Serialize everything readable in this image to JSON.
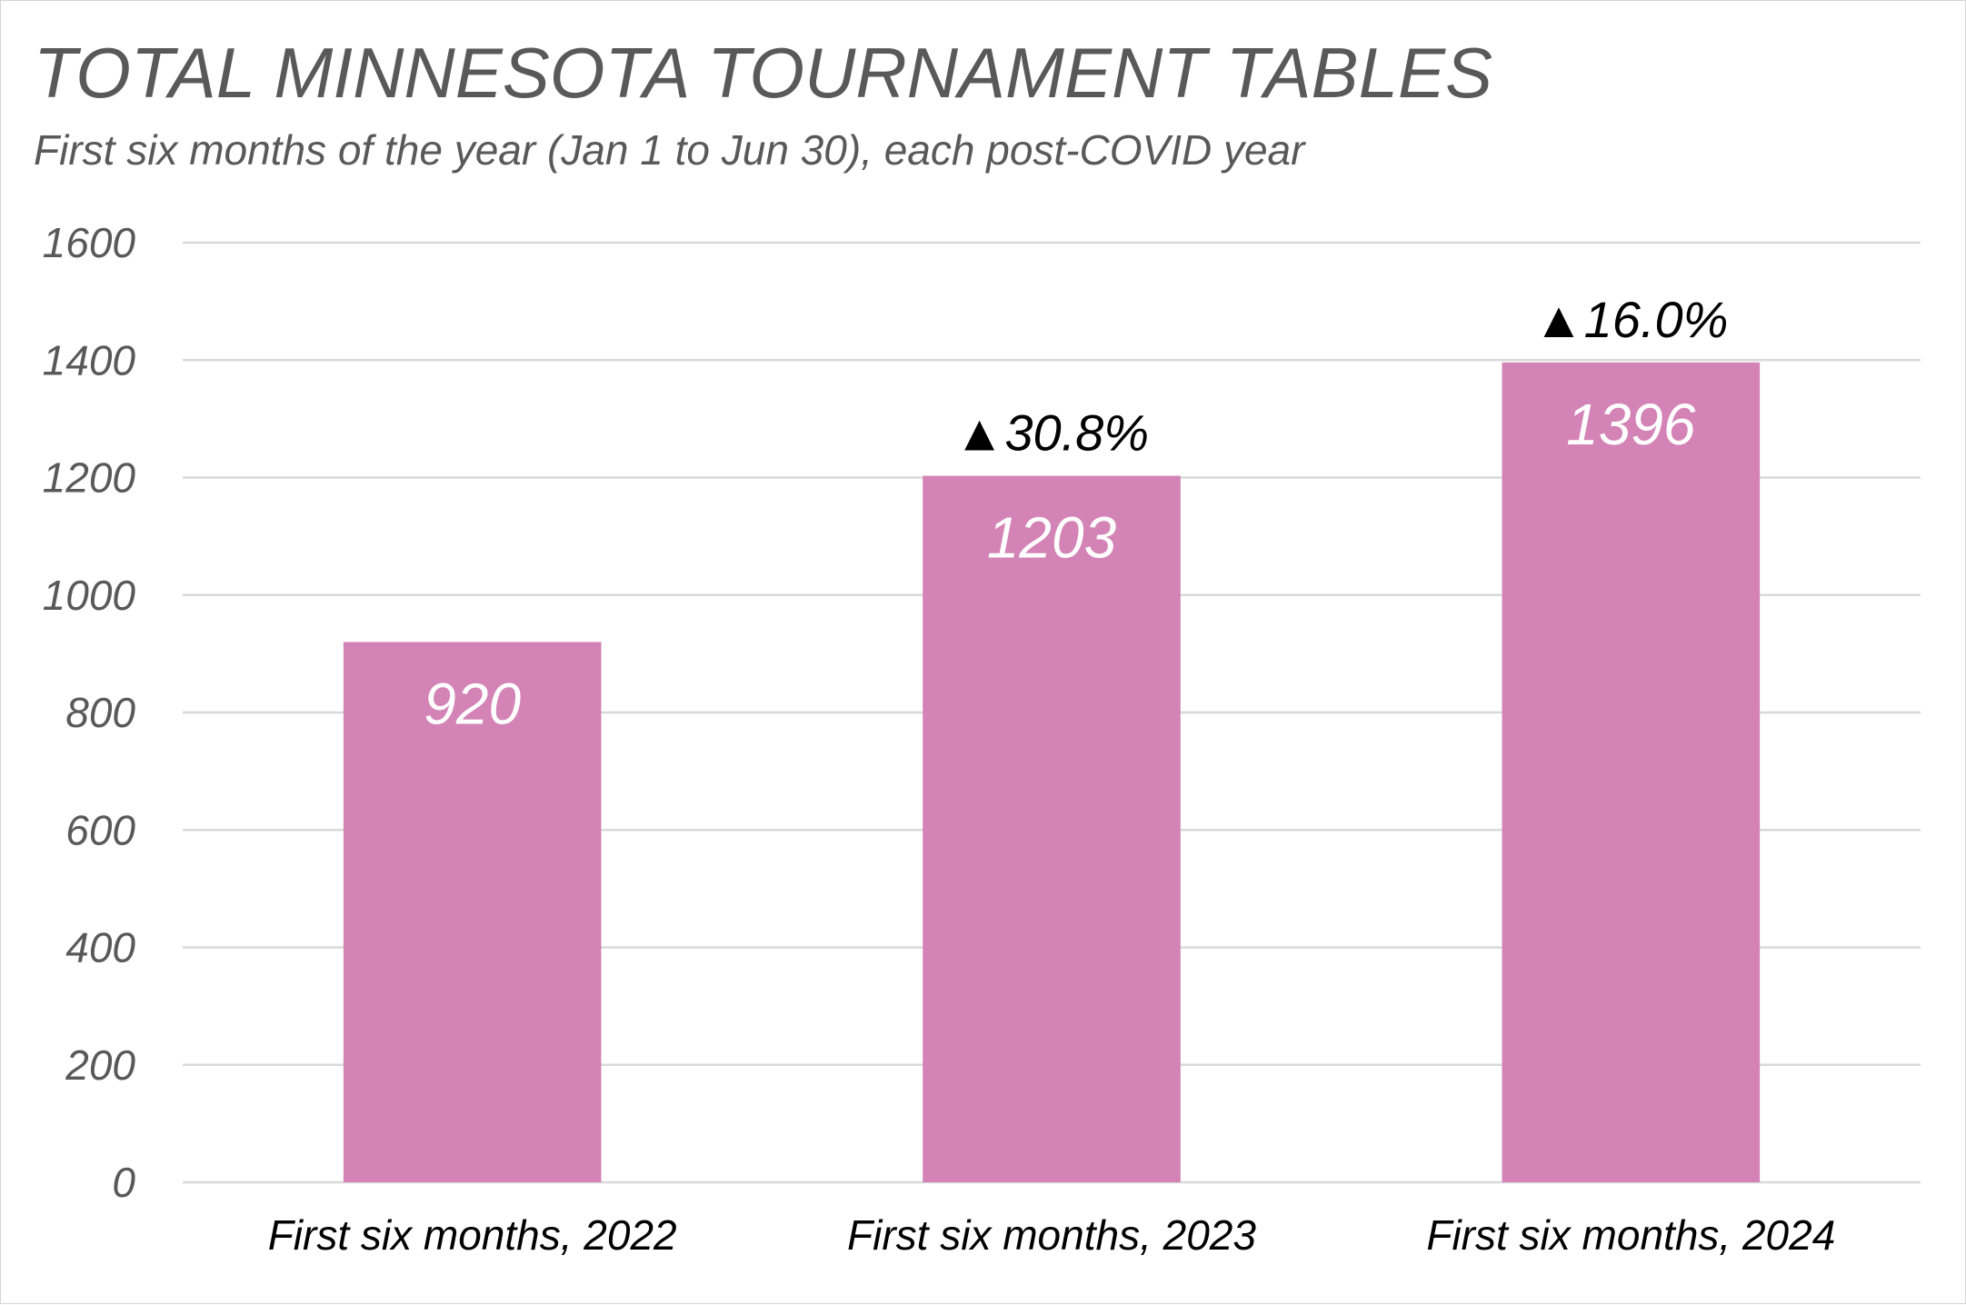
{
  "chart_data": {
    "type": "bar",
    "title": "TOTAL MINNESOTA TOURNAMENT TABLES",
    "subtitle": "First six months of the year (Jan 1 to Jun 30), each post-COVID year",
    "xlabel": "",
    "ylabel": "",
    "categories": [
      "First six months, 2022",
      "First six months, 2023",
      "First six months, 2024"
    ],
    "values": [
      920,
      1203,
      1396
    ],
    "data_labels": [
      "920",
      "1203",
      "1396"
    ],
    "change_labels": [
      "",
      "▲30.8%",
      "▲16.0%"
    ],
    "ylim": [
      0,
      1600
    ],
    "y_ticks": [
      0,
      200,
      400,
      600,
      800,
      1000,
      1200,
      1400,
      1600
    ],
    "grid": true,
    "legend": "none",
    "colors": {
      "bar": "#d383b5",
      "grid": "#d9d9d9",
      "title": "#595959",
      "axis_text": "#595959",
      "category_text": "#000000",
      "data_label": "#ffffff",
      "change_label": "#000000"
    }
  }
}
